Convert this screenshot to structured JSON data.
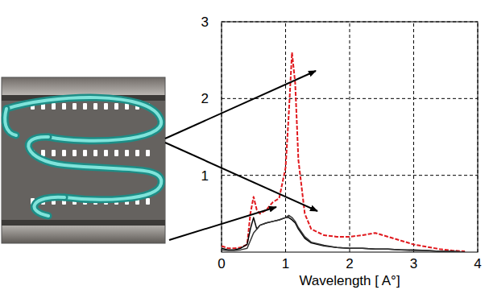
{
  "chart_data": {
    "type": "line",
    "x_label": "Wavelength [ A°]",
    "x": [
      0,
      0.1,
      0.2,
      0.3,
      0.4,
      0.45,
      0.5,
      0.55,
      0.6,
      0.7,
      0.8,
      0.9,
      1.0,
      1.05,
      1.1,
      1.15,
      1.2,
      1.3,
      1.4,
      1.6,
      1.8,
      2.0,
      2.2,
      2.4,
      2.6,
      2.8,
      3.0,
      3.2,
      3.4,
      3.6,
      3.8
    ],
    "series": [
      {
        "color": "#e0191e",
        "line_style": "dashed",
        "values": [
          0.08,
          0.05,
          0.05,
          0.06,
          0.1,
          0.5,
          0.72,
          0.55,
          0.5,
          0.55,
          0.65,
          0.7,
          1.1,
          1.8,
          2.6,
          2.2,
          1.2,
          0.5,
          0.3,
          0.22,
          0.2,
          0.2,
          0.22,
          0.25,
          0.2,
          0.15,
          0.1,
          0.07,
          0.04,
          0.02,
          0.01
        ]
      },
      {
        "color": "#000000",
        "line_style": "solid",
        "values": [
          0.05,
          0.03,
          0.03,
          0.05,
          0.1,
          0.3,
          0.45,
          0.3,
          0.35,
          0.38,
          0.4,
          0.42,
          0.45,
          0.45,
          0.42,
          0.38,
          0.3,
          0.18,
          0.12,
          0.08,
          0.06,
          0.05,
          0.05,
          0.04,
          0.04,
          0.03,
          0.03,
          0.02,
          0.01,
          0.01,
          0
        ]
      },
      {
        "color": "#333333",
        "line_style": "solid",
        "values": [
          0.03,
          0.02,
          0.02,
          0.03,
          0.05,
          0.15,
          0.25,
          0.3,
          0.35,
          0.38,
          0.4,
          0.42,
          0.45,
          0.48,
          0.45,
          0.4,
          0.32,
          0.2,
          0.13,
          0.09,
          0.06,
          0.05,
          0.05,
          0.04,
          0.04,
          0.03,
          0.02,
          0.02,
          0.01,
          0.01,
          0
        ]
      }
    ],
    "xlim": [
      0,
      4
    ],
    "xticks": [
      0,
      1,
      2,
      3,
      4
    ],
    "ylim": [
      0,
      3
    ],
    "yticks": [
      1,
      2,
      3
    ],
    "grid": true
  }
}
